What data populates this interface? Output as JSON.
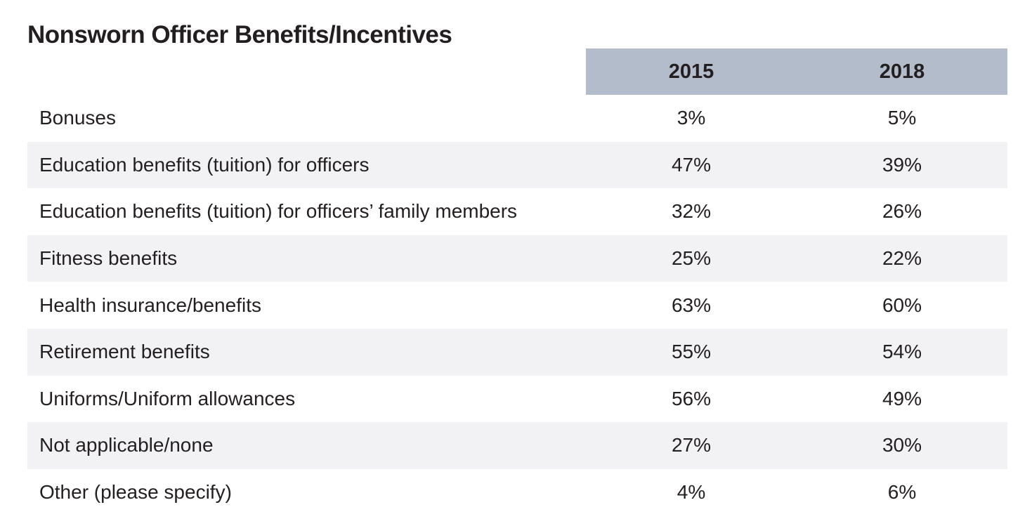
{
  "chart_data": {
    "type": "table",
    "title": "Nonsworn Officer Benefits/Incentives",
    "columns": [
      "2015",
      "2018"
    ],
    "rows": [
      {
        "label": "Bonuses",
        "values": [
          "3%",
          "5%"
        ]
      },
      {
        "label": "Education benefits (tuition) for officers",
        "values": [
          "47%",
          "39%"
        ]
      },
      {
        "label": "Education benefits (tuition) for officers’ family members",
        "values": [
          "32%",
          "26%"
        ]
      },
      {
        "label": "Fitness benefits",
        "values": [
          "25%",
          "22%"
        ]
      },
      {
        "label": "Health insurance/benefits",
        "values": [
          "63%",
          "60%"
        ]
      },
      {
        "label": "Retirement benefits",
        "values": [
          "55%",
          "54%"
        ]
      },
      {
        "label": "Uniforms/Uniform allowances",
        "values": [
          "56%",
          "49%"
        ]
      },
      {
        "label": "Not applicable/none",
        "values": [
          "27%",
          "30%"
        ]
      },
      {
        "label": "Other (please specify)",
        "values": [
          "4%",
          "6%"
        ]
      }
    ],
    "header_color": "#b3bccb",
    "stripe_color": "#f2f2f4"
  }
}
